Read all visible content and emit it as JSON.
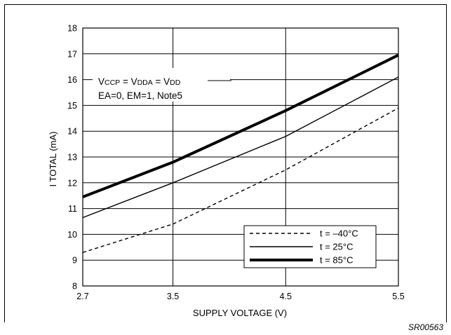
{
  "chart_data": {
    "type": "line",
    "xlabel": "SUPPLY VOLTAGE (V)",
    "ylabel": "I TOTAL (mA)",
    "xlim": [
      2.7,
      5.5
    ],
    "ylim": [
      8,
      18
    ],
    "x_ticks": [
      2.7,
      3.5,
      4.5,
      5.5
    ],
    "y_ticks": [
      8,
      9,
      10,
      11,
      12,
      13,
      14,
      15,
      16,
      17,
      18
    ],
    "grid": true,
    "x": [
      2.7,
      3.5,
      4.5,
      5.5
    ],
    "series": [
      {
        "name": "t = –40°C",
        "style": "dashed",
        "values": [
          9.3,
          10.4,
          12.5,
          14.9
        ]
      },
      {
        "name": "t = 25°C",
        "style": "thin",
        "values": [
          10.65,
          12.0,
          13.8,
          16.1
        ]
      },
      {
        "name": "t = 85°C",
        "style": "thick",
        "values": [
          11.45,
          12.8,
          14.8,
          16.95
        ]
      }
    ],
    "annotation": {
      "line1": [
        {
          "text": "V",
          "sub": false
        },
        {
          "text": "CCP",
          "sub": true
        },
        {
          "text": " = V",
          "sub": false
        },
        {
          "text": "DDA",
          "sub": true
        },
        {
          "text": " = V",
          "sub": false
        },
        {
          "text": "DD",
          "sub": true
        }
      ],
      "line2": "EA=0, EM=1,  Note5"
    },
    "legend_position": "bottom-right",
    "code": "SR00563"
  }
}
